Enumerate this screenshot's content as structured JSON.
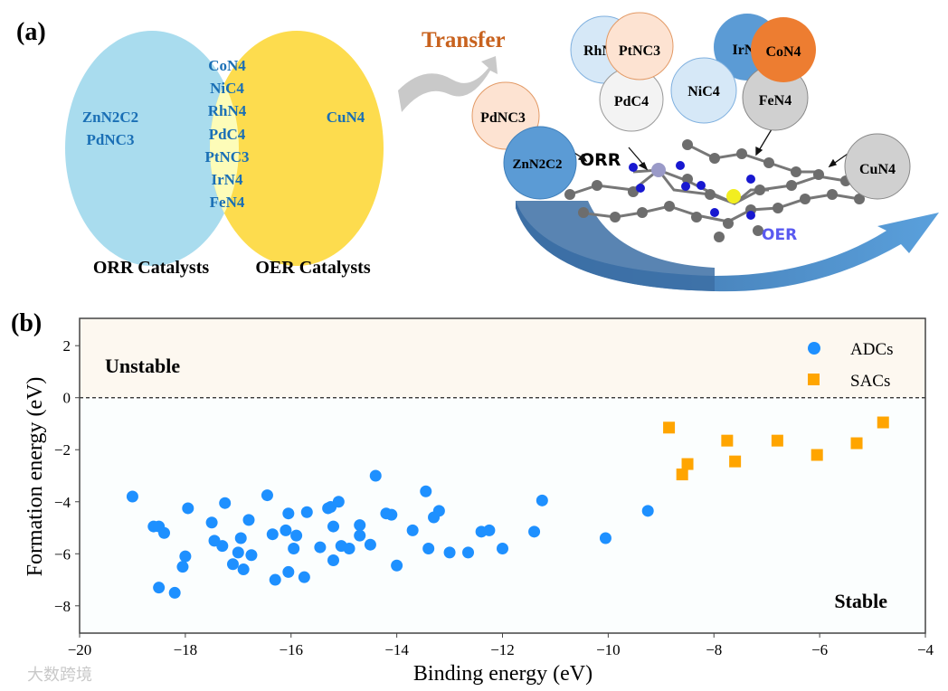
{
  "panel_a": {
    "label": "(a)",
    "venn": {
      "orr_only": [
        "ZnN2C2",
        "PdNC3"
      ],
      "both": [
        "CoN4",
        "NiC4",
        "RhN4",
        "PdC4",
        "PtNC3",
        "IrN4",
        "FeN4"
      ],
      "oer_only": [
        "CuN4"
      ],
      "orr_label": "ORR Catalysts",
      "oer_label": "OER Catalysts",
      "colors": {
        "orr": "#a9dcee",
        "both": "#fdfcb8",
        "oer": "#fddc4e",
        "text": "#1a6fb5"
      }
    },
    "transfer_label": "Transfer",
    "bubbles": {
      "rh": "RhN4",
      "pt": "PtNC3",
      "pd": "PdC4",
      "ni": "NiC4",
      "ir": "IrN4",
      "co": "CoN4",
      "fe": "FeN4",
      "pdnc3": "PdNC3",
      "zn": "ZnN2C2",
      "cu": "CuN4"
    },
    "orr_text": "ORR",
    "oer_text": "OER"
  },
  "panel_b_label": "(b)",
  "watermark": "大数跨境",
  "chart_data": {
    "type": "scatter",
    "xlabel": "Binding energy (eV)",
    "ylabel": "Formation energy (eV)",
    "xlim": [
      -20,
      -4
    ],
    "ylim": [
      -9.05,
      3.05
    ],
    "xticks": [
      -20,
      -18,
      -16,
      -14,
      -12,
      -10,
      -8,
      -6,
      -4
    ],
    "yticks": [
      2,
      0,
      -2,
      -4,
      -6,
      -8
    ],
    "xtick_labels": [
      "−20",
      "−18",
      "−16",
      "−14",
      "−12",
      "−10",
      "−8",
      "−6",
      "−4"
    ],
    "ytick_labels": [
      "2",
      "0",
      "−2",
      "−4",
      "−6",
      "−8"
    ],
    "reference_line_y": 0,
    "region_labels": {
      "unstable": "Unstable",
      "stable": "Stable"
    },
    "legend_position": "top-right",
    "series": [
      {
        "name": "ADCs",
        "marker": "circle",
        "color": "#1e90ff",
        "points": [
          [
            -19.0,
            -3.8
          ],
          [
            -18.6,
            -4.95
          ],
          [
            -18.5,
            -4.95
          ],
          [
            -18.4,
            -5.2
          ],
          [
            -18.5,
            -7.3
          ],
          [
            -18.2,
            -7.5
          ],
          [
            -17.95,
            -4.25
          ],
          [
            -18.0,
            -6.1
          ],
          [
            -18.05,
            -6.5
          ],
          [
            -17.5,
            -4.8
          ],
          [
            -17.45,
            -5.5
          ],
          [
            -17.3,
            -5.7
          ],
          [
            -17.25,
            -4.05
          ],
          [
            -17.1,
            -6.4
          ],
          [
            -17.0,
            -5.95
          ],
          [
            -16.95,
            -5.4
          ],
          [
            -16.9,
            -6.6
          ],
          [
            -16.8,
            -4.7
          ],
          [
            -16.75,
            -6.05
          ],
          [
            -16.45,
            -3.75
          ],
          [
            -16.35,
            -5.25
          ],
          [
            -16.3,
            -7.0
          ],
          [
            -16.1,
            -5.1
          ],
          [
            -16.05,
            -4.45
          ],
          [
            -16.05,
            -6.7
          ],
          [
            -15.95,
            -5.8
          ],
          [
            -15.9,
            -5.3
          ],
          [
            -15.75,
            -6.9
          ],
          [
            -15.7,
            -4.4
          ],
          [
            -15.45,
            -5.75
          ],
          [
            -15.3,
            -4.25
          ],
          [
            -15.25,
            -4.2
          ],
          [
            -15.2,
            -6.25
          ],
          [
            -15.2,
            -4.95
          ],
          [
            -15.1,
            -4.0
          ],
          [
            -15.05,
            -5.7
          ],
          [
            -14.9,
            -5.8
          ],
          [
            -14.7,
            -4.9
          ],
          [
            -14.7,
            -5.3
          ],
          [
            -14.5,
            -5.65
          ],
          [
            -14.4,
            -3.0
          ],
          [
            -14.2,
            -4.45
          ],
          [
            -14.1,
            -4.5
          ],
          [
            -14.0,
            -6.45
          ],
          [
            -13.7,
            -5.1
          ],
          [
            -13.45,
            -3.6
          ],
          [
            -13.4,
            -5.8
          ],
          [
            -13.3,
            -4.6
          ],
          [
            -13.2,
            -4.35
          ],
          [
            -13.0,
            -5.95
          ],
          [
            -12.65,
            -5.95
          ],
          [
            -12.4,
            -5.15
          ],
          [
            -12.25,
            -5.1
          ],
          [
            -12.0,
            -5.8
          ],
          [
            -11.4,
            -5.15
          ],
          [
            -11.25,
            -3.95
          ],
          [
            -10.05,
            -5.4
          ],
          [
            -9.25,
            -4.35
          ]
        ]
      },
      {
        "name": "SACs",
        "marker": "square",
        "color": "#ffa500",
        "points": [
          [
            -8.85,
            -1.15
          ],
          [
            -8.6,
            -2.95
          ],
          [
            -8.5,
            -2.55
          ],
          [
            -7.75,
            -1.65
          ],
          [
            -7.6,
            -2.45
          ],
          [
            -6.8,
            -1.65
          ],
          [
            -6.05,
            -2.2
          ],
          [
            -5.3,
            -1.75
          ],
          [
            -4.8,
            -0.95
          ]
        ]
      }
    ]
  }
}
